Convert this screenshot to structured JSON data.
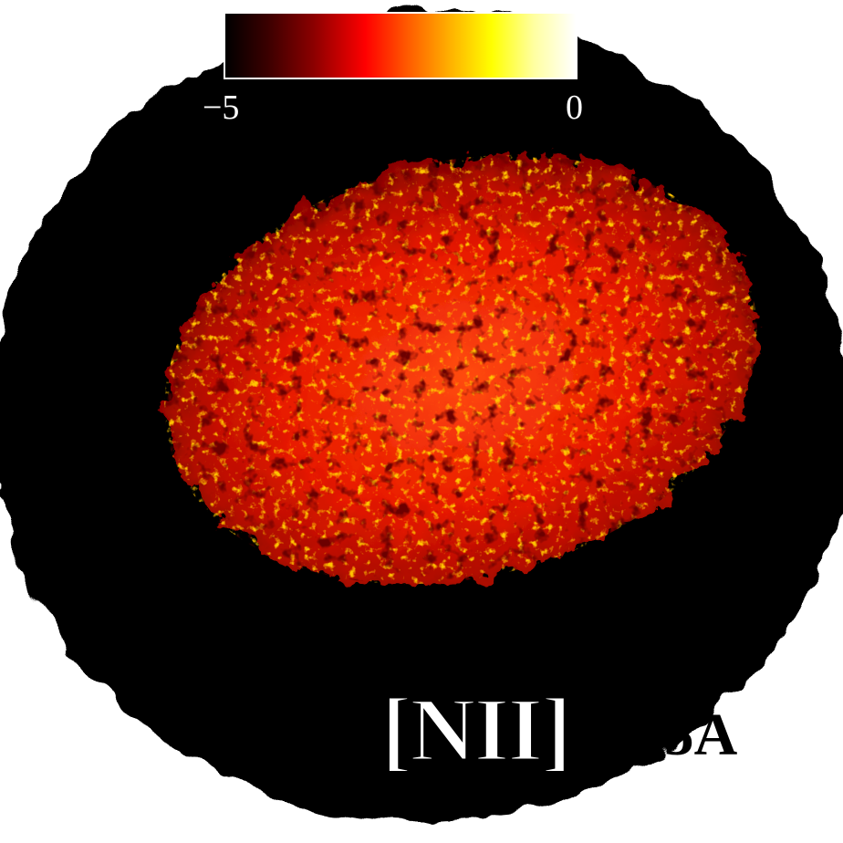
{
  "image": {
    "description_colors": {
      "background": "#ffffff",
      "disk": "#050000",
      "emission_low": "#8a0000",
      "emission_mid": "#ff2a00",
      "emission_high": "#ffd000"
    }
  },
  "colorbar": {
    "min_label": "−5",
    "max_label": "0",
    "colormap": "hot"
  },
  "label": {
    "ion": "[NII]",
    "wavelength": "6585A"
  }
}
